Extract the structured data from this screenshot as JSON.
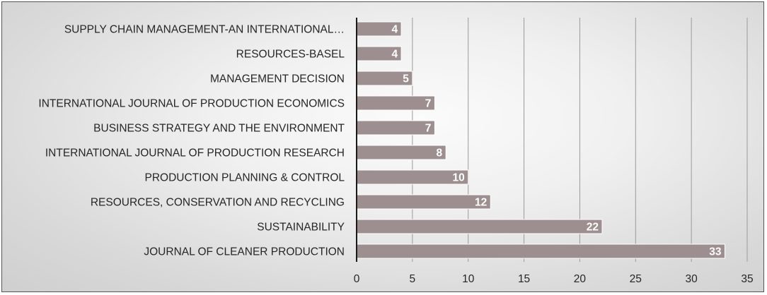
{
  "chart_data": {
    "type": "bar",
    "orientation": "horizontal",
    "categories": [
      "SUPPLY CHAIN MANAGEMENT-AN INTERNATIONAL…",
      "RESOURCES-BASEL",
      "MANAGEMENT DECISION",
      "INTERNATIONAL JOURNAL OF PRODUCTION ECONOMICS",
      "BUSINESS STRATEGY AND THE ENVIRONMENT",
      "INTERNATIONAL JOURNAL OF PRODUCTION RESEARCH",
      "PRODUCTION PLANNING & CONTROL",
      "RESOURCES, CONSERVATION AND RECYCLING",
      "SUSTAINABILITY",
      "JOURNAL OF CLEANER PRODUCTION"
    ],
    "values": [
      4,
      4,
      5,
      7,
      7,
      8,
      10,
      12,
      22,
      33
    ],
    "xlim": [
      0,
      35
    ],
    "xticks": [
      0,
      5,
      10,
      15,
      20,
      25,
      30,
      35
    ],
    "grid": "vertical",
    "legend": "none",
    "colors": {
      "bar": "#9d8f8f",
      "bar_border": "#ffffff",
      "gridline": "#9a9a9a",
      "axis": "#1a1a1a",
      "text": "#262626",
      "data_label": "#ffffff"
    }
  }
}
